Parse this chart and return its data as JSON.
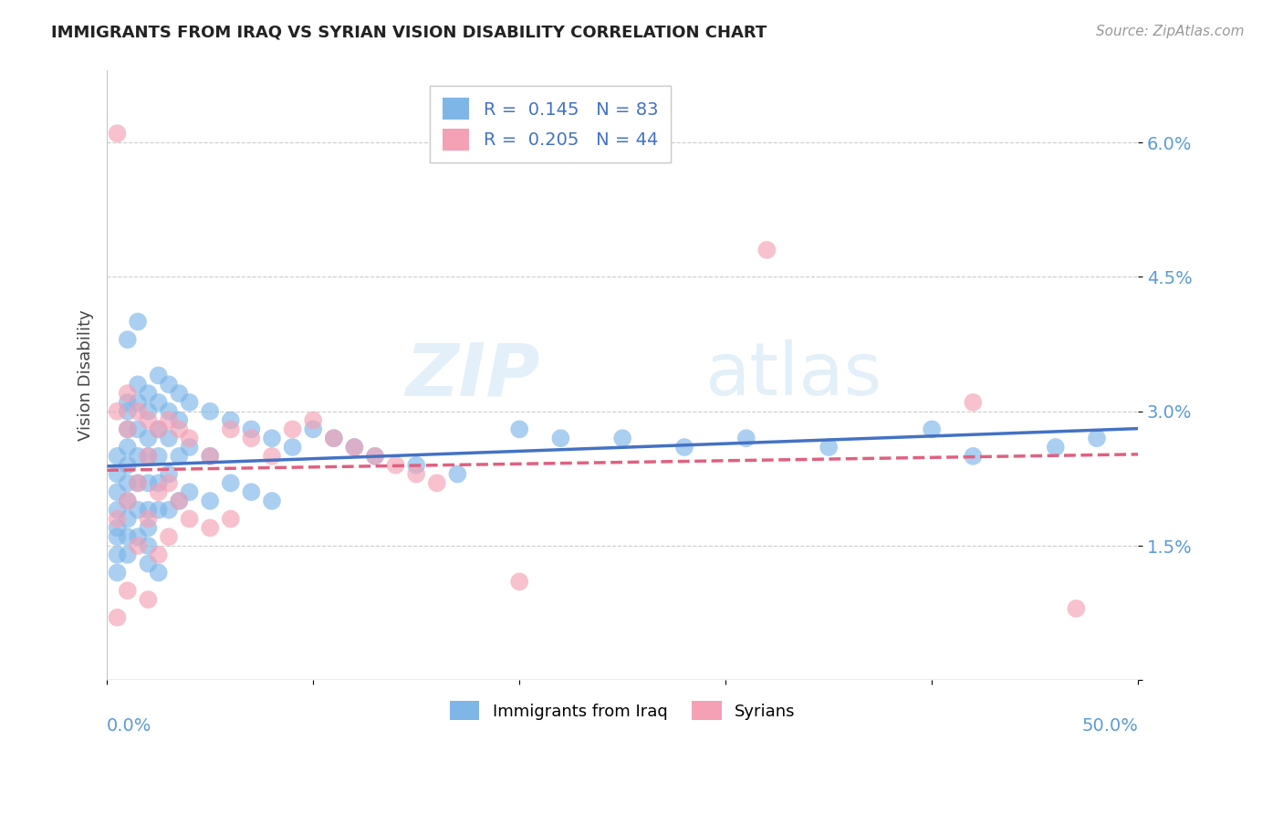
{
  "title": "IMMIGRANTS FROM IRAQ VS SYRIAN VISION DISABILITY CORRELATION CHART",
  "source": "Source: ZipAtlas.com",
  "ylabel": "Vision Disability",
  "yticks": [
    0.0,
    0.015,
    0.03,
    0.045,
    0.06
  ],
  "ytick_labels": [
    "",
    "1.5%",
    "3.0%",
    "4.5%",
    "6.0%"
  ],
  "xlim": [
    0.0,
    0.5
  ],
  "ylim": [
    0.0,
    0.068
  ],
  "iraq_R": "0.145",
  "iraq_N": "83",
  "syrian_R": "0.205",
  "syrian_N": "44",
  "iraq_color": "#7EB6E8",
  "syrian_color": "#F4A0B5",
  "iraq_line_color": "#4472C4",
  "syrian_line_color": "#E06080",
  "watermark_zip": "ZIP",
  "watermark_atlas": "atlas",
  "legend_iraq": "Immigrants from Iraq",
  "legend_syrian": "Syrians",
  "iraq_x": [
    0.005,
    0.005,
    0.005,
    0.005,
    0.005,
    0.005,
    0.005,
    0.005,
    0.01,
    0.01,
    0.01,
    0.01,
    0.01,
    0.01,
    0.01,
    0.01,
    0.01,
    0.01,
    0.015,
    0.015,
    0.015,
    0.015,
    0.015,
    0.015,
    0.015,
    0.02,
    0.02,
    0.02,
    0.02,
    0.02,
    0.02,
    0.02,
    0.02,
    0.025,
    0.025,
    0.025,
    0.025,
    0.025,
    0.025,
    0.03,
    0.03,
    0.03,
    0.03,
    0.03,
    0.035,
    0.035,
    0.035,
    0.035,
    0.04,
    0.04,
    0.04,
    0.05,
    0.05,
    0.05,
    0.06,
    0.06,
    0.07,
    0.07,
    0.08,
    0.08,
    0.09,
    0.1,
    0.11,
    0.12,
    0.13,
    0.15,
    0.17,
    0.2,
    0.22,
    0.25,
    0.28,
    0.31,
    0.35,
    0.4,
    0.42,
    0.46,
    0.48,
    0.01,
    0.015,
    0.02,
    0.025
  ],
  "iraq_y": [
    0.025,
    0.023,
    0.021,
    0.019,
    0.017,
    0.016,
    0.014,
    0.012,
    0.031,
    0.03,
    0.028,
    0.026,
    0.024,
    0.022,
    0.02,
    0.018,
    0.016,
    0.014,
    0.033,
    0.031,
    0.028,
    0.025,
    0.022,
    0.019,
    0.016,
    0.032,
    0.03,
    0.027,
    0.025,
    0.022,
    0.019,
    0.017,
    0.015,
    0.034,
    0.031,
    0.028,
    0.025,
    0.022,
    0.019,
    0.033,
    0.03,
    0.027,
    0.023,
    0.019,
    0.032,
    0.029,
    0.025,
    0.02,
    0.031,
    0.026,
    0.021,
    0.03,
    0.025,
    0.02,
    0.029,
    0.022,
    0.028,
    0.021,
    0.027,
    0.02,
    0.026,
    0.028,
    0.027,
    0.026,
    0.025,
    0.024,
    0.023,
    0.028,
    0.027,
    0.027,
    0.026,
    0.027,
    0.026,
    0.028,
    0.025,
    0.026,
    0.027,
    0.038,
    0.04,
    0.013,
    0.012
  ],
  "syrian_x": [
    0.005,
    0.005,
    0.005,
    0.01,
    0.01,
    0.01,
    0.01,
    0.015,
    0.015,
    0.015,
    0.02,
    0.02,
    0.02,
    0.02,
    0.025,
    0.025,
    0.025,
    0.03,
    0.03,
    0.03,
    0.035,
    0.035,
    0.04,
    0.04,
    0.05,
    0.05,
    0.06,
    0.06,
    0.07,
    0.08,
    0.09,
    0.1,
    0.11,
    0.12,
    0.13,
    0.14,
    0.15,
    0.16,
    0.2,
    0.32,
    0.42,
    0.47,
    0.005
  ],
  "syrian_y": [
    0.061,
    0.03,
    0.018,
    0.032,
    0.028,
    0.02,
    0.01,
    0.03,
    0.022,
    0.015,
    0.029,
    0.025,
    0.018,
    0.009,
    0.028,
    0.021,
    0.014,
    0.029,
    0.022,
    0.016,
    0.028,
    0.02,
    0.027,
    0.018,
    0.025,
    0.017,
    0.028,
    0.018,
    0.027,
    0.025,
    0.028,
    0.029,
    0.027,
    0.026,
    0.025,
    0.024,
    0.023,
    0.022,
    0.011,
    0.048,
    0.031,
    0.008,
    0.007
  ]
}
